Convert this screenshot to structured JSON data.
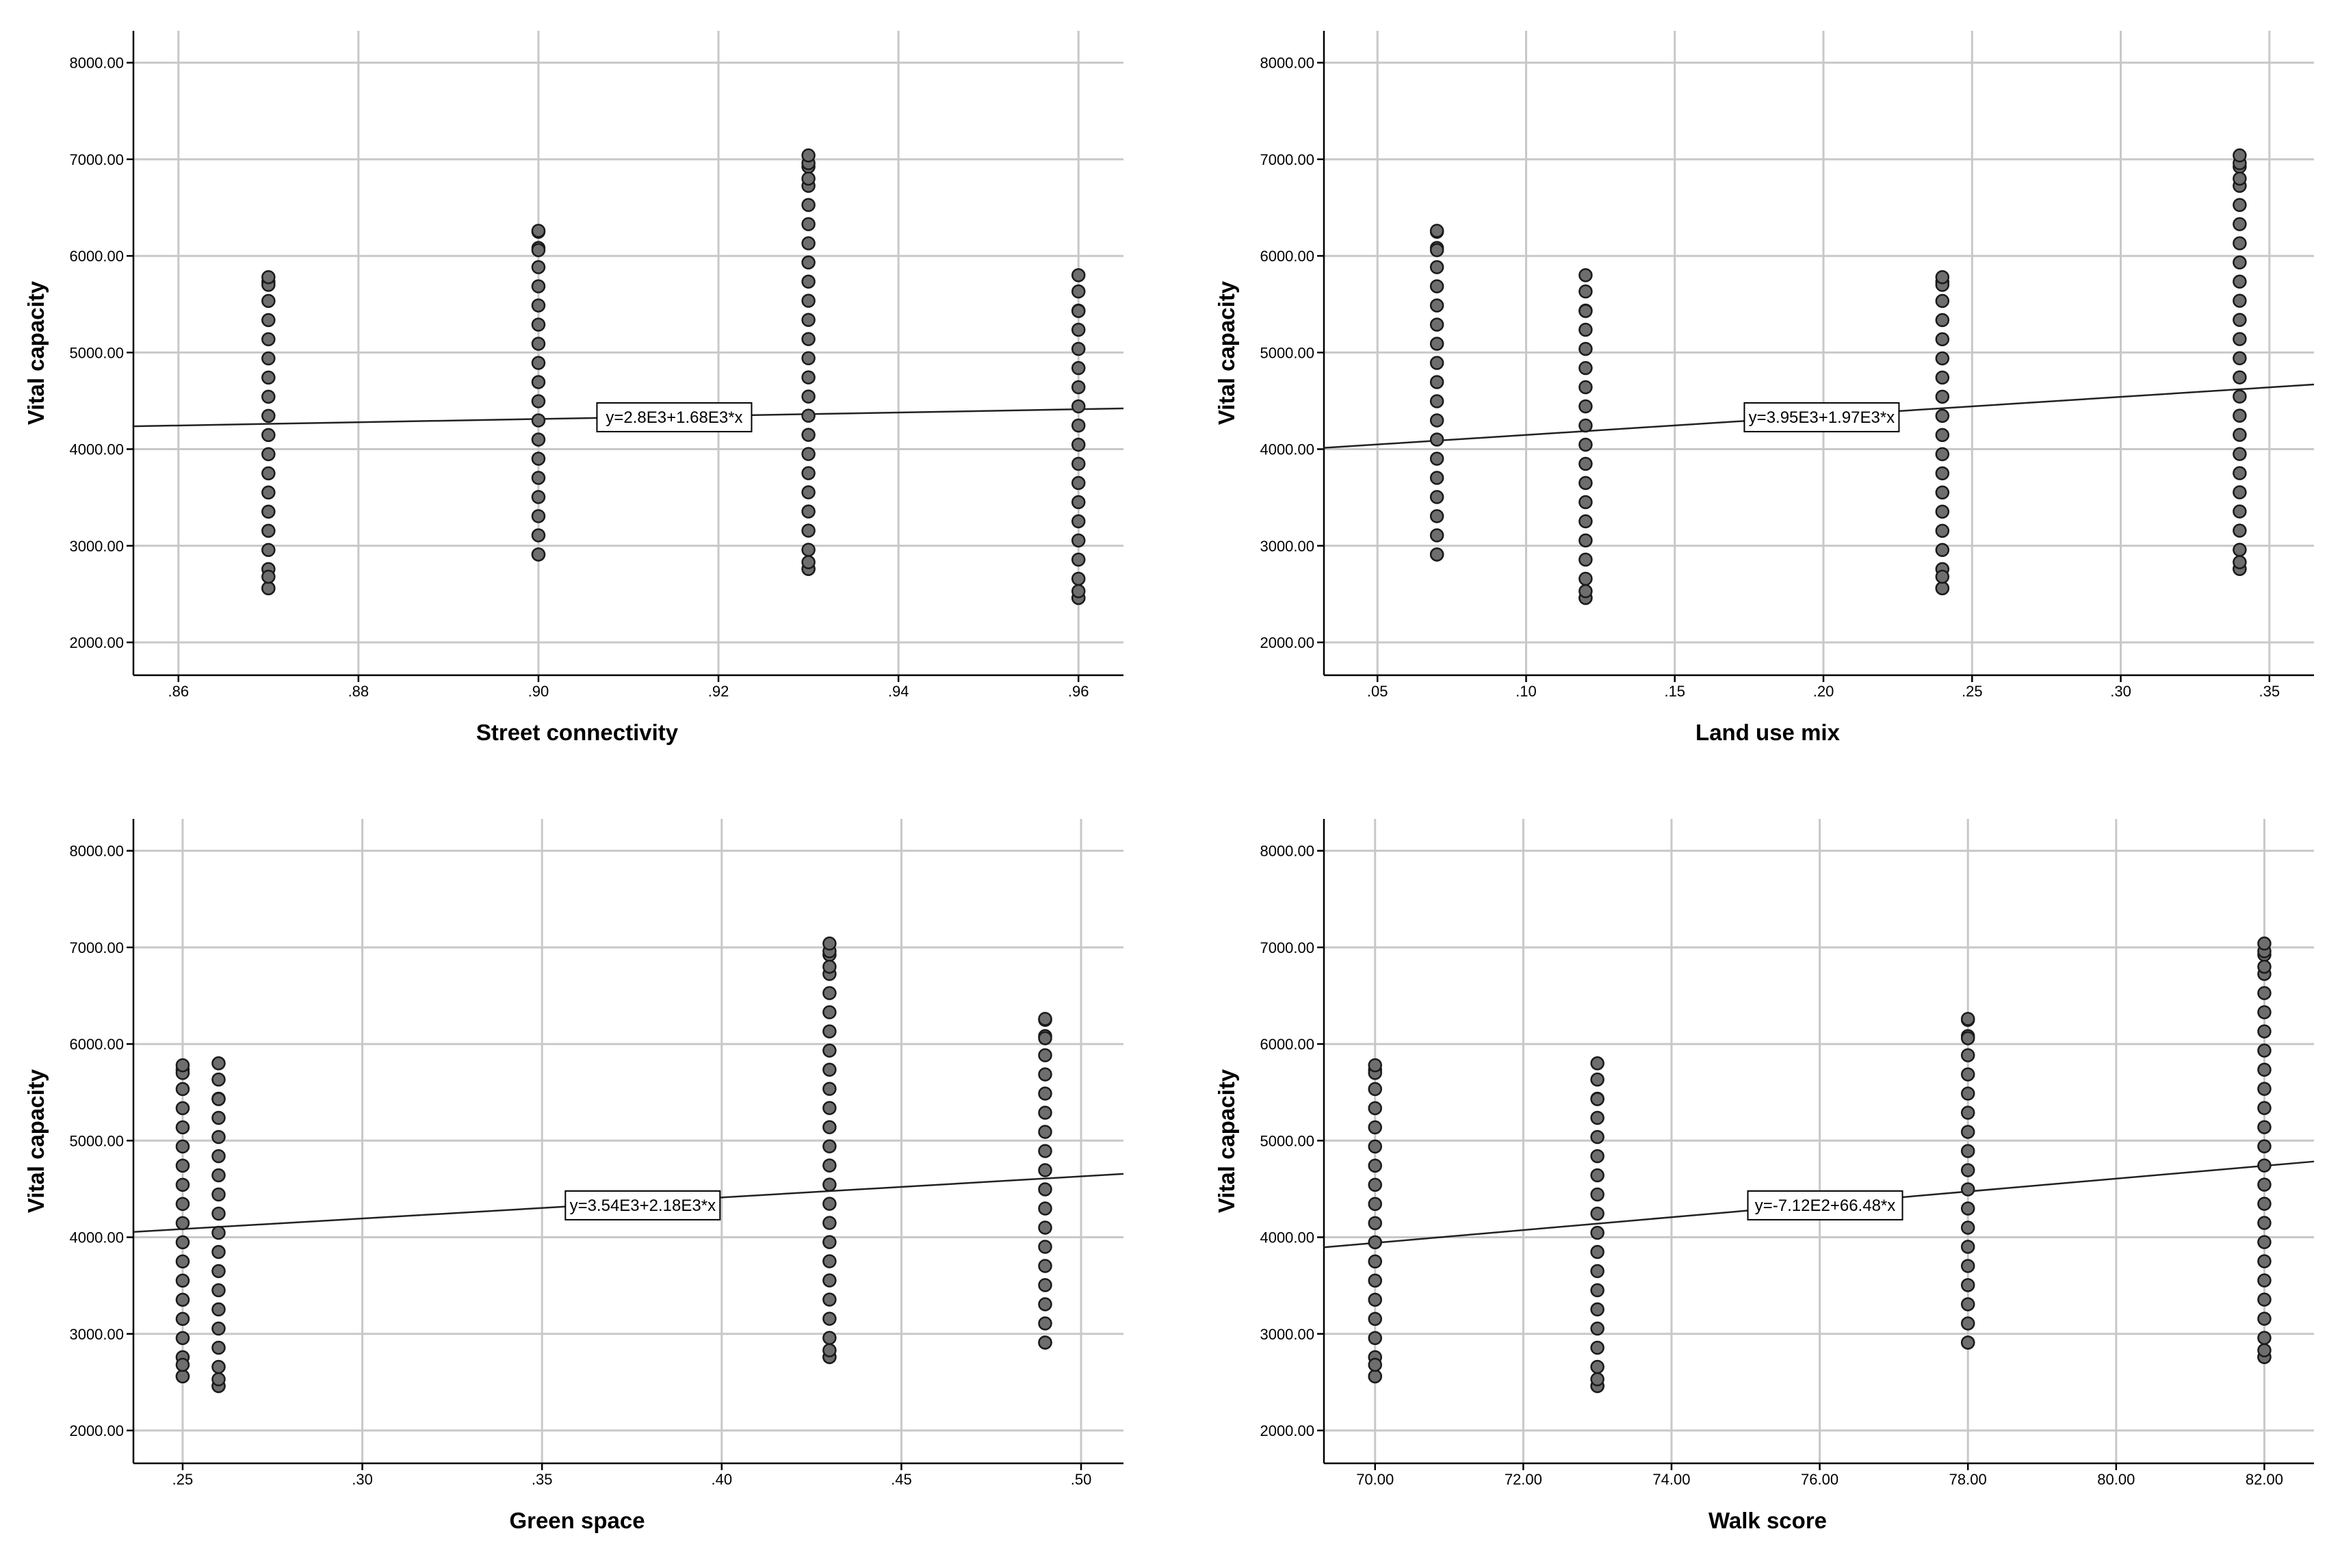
{
  "chart_data": [
    {
      "type": "scatter",
      "xlabel": "Street connectivity",
      "ylabel": "Vital capacity",
      "xlim": [
        0.855,
        0.965
      ],
      "ylim": [
        1660,
        8330
      ],
      "xticks": [
        ".86",
        ".88",
        ".90",
        ".92",
        ".94",
        ".96"
      ],
      "xtick_values": [
        0.86,
        0.88,
        0.9,
        0.92,
        0.94,
        0.96
      ],
      "yticks": [
        "2000.00",
        "3000.00",
        "4000.00",
        "5000.00",
        "6000.00",
        "7000.00",
        "8000.00"
      ],
      "ytick_values": [
        2000,
        3000,
        4000,
        5000,
        6000,
        7000,
        8000
      ],
      "grid": true,
      "fit": {
        "intercept": 2800,
        "slope": 1680,
        "label": "y=2.8E3+1.68E3*x",
        "label_x": 0.9065,
        "label_y": 4330
      },
      "groups": [
        {
          "x": 0.87,
          "y_min": 2560,
          "y_max": 5780,
          "extra": [
            2560,
            2680,
            5700,
            5780
          ]
        },
        {
          "x": 0.9,
          "y_min": 2910,
          "y_max": 6260,
          "extra": [
            2910,
            6060,
            6250,
            6260
          ]
        },
        {
          "x": 0.93,
          "y_min": 2760,
          "y_max": 7040,
          "extra": [
            2760,
            2830,
            6800,
            6960,
            7040
          ]
        },
        {
          "x": 0.96,
          "y_min": 2460,
          "y_max": 5800,
          "extra": [
            2460,
            2530,
            5430,
            5800
          ]
        }
      ]
    },
    {
      "type": "scatter",
      "xlabel": "Land use mix",
      "ylabel": "Vital capacity",
      "xlim": [
        0.032,
        0.365
      ],
      "ylim": [
        1660,
        8330
      ],
      "xticks": [
        ".05",
        ".10",
        ".15",
        ".20",
        ".25",
        ".30",
        ".35"
      ],
      "xtick_values": [
        0.05,
        0.1,
        0.15,
        0.2,
        0.25,
        0.3,
        0.35
      ],
      "yticks": [
        "2000.00",
        "3000.00",
        "4000.00",
        "5000.00",
        "6000.00",
        "7000.00",
        "8000.00"
      ],
      "ytick_values": [
        2000,
        3000,
        4000,
        5000,
        6000,
        7000,
        8000
      ],
      "grid": true,
      "fit": {
        "intercept": 3950,
        "slope": 1970,
        "label": "y=3.95E3+1.97E3*x",
        "label_x": 0.1734,
        "label_y": 4330
      },
      "groups": [
        {
          "x": 0.07,
          "y_min": 2910,
          "y_max": 6260,
          "extra": [
            2910,
            6060,
            6250,
            6260
          ]
        },
        {
          "x": 0.12,
          "y_min": 2460,
          "y_max": 5800,
          "extra": [
            2460,
            2530,
            5430,
            5800
          ]
        },
        {
          "x": 0.24,
          "y_min": 2560,
          "y_max": 5780,
          "extra": [
            2560,
            2680,
            5700,
            5780
          ]
        },
        {
          "x": 0.34,
          "y_min": 2760,
          "y_max": 7040,
          "extra": [
            2760,
            2830,
            6800,
            6960,
            7040
          ]
        }
      ]
    },
    {
      "type": "scatter",
      "xlabel": "Green space",
      "ylabel": "Vital capacity",
      "xlim": [
        0.2363,
        0.5118
      ],
      "ylim": [
        1660,
        8330
      ],
      "xticks": [
        ".25",
        ".30",
        ".35",
        ".40",
        ".45",
        ".50"
      ],
      "xtick_values": [
        0.25,
        0.3,
        0.35,
        0.4,
        0.45,
        0.5
      ],
      "yticks": [
        "2000.00",
        "3000.00",
        "4000.00",
        "5000.00",
        "6000.00",
        "7000.00",
        "8000.00"
      ],
      "ytick_values": [
        2000,
        3000,
        4000,
        5000,
        6000,
        7000,
        8000
      ],
      "grid": true,
      "fit": {
        "intercept": 3540,
        "slope": 2180,
        "label": "y=3.54E3+2.18E3*x",
        "label_x": 0.3565,
        "label_y": 4330
      },
      "groups": [
        {
          "x": 0.25,
          "y_min": 2560,
          "y_max": 5780,
          "extra": [
            2560,
            2680,
            5700,
            5780
          ]
        },
        {
          "x": 0.26,
          "y_min": 2460,
          "y_max": 5800,
          "extra": [
            2460,
            2530,
            5430,
            5800
          ]
        },
        {
          "x": 0.43,
          "y_min": 2760,
          "y_max": 7040,
          "extra": [
            2760,
            2830,
            6800,
            6960,
            7040
          ]
        },
        {
          "x": 0.49,
          "y_min": 2910,
          "y_max": 6260,
          "extra": [
            2910,
            6060,
            6250,
            6260
          ]
        }
      ]
    },
    {
      "type": "scatter",
      "xlabel": "Walk score",
      "ylabel": "Vital capacity",
      "xlim": [
        69.31,
        82.67
      ],
      "ylim": [
        1660,
        8330
      ],
      "xticks": [
        "70.00",
        "72.00",
        "74.00",
        "76.00",
        "78.00",
        "80.00",
        "82.00"
      ],
      "xtick_values": [
        70,
        72,
        74,
        76,
        78,
        80,
        82
      ],
      "yticks": [
        "2000.00",
        "3000.00",
        "4000.00",
        "5000.00",
        "6000.00",
        "7000.00",
        "8000.00"
      ],
      "ytick_values": [
        2000,
        3000,
        4000,
        5000,
        6000,
        7000,
        8000
      ],
      "grid": true,
      "fit": {
        "intercept": -712,
        "slope": 66.48,
        "label": "y=-7.12E2+66.48*x",
        "label_x": 75.03,
        "label_y": 4330
      },
      "groups": [
        {
          "x": 70,
          "y_min": 2560,
          "y_max": 5780,
          "extra": [
            2560,
            2680,
            5700,
            5780
          ]
        },
        {
          "x": 73,
          "y_min": 2460,
          "y_max": 5800,
          "extra": [
            2460,
            2530,
            5430,
            5800
          ]
        },
        {
          "x": 78,
          "y_min": 2910,
          "y_max": 6260,
          "extra": [
            2910,
            6060,
            6250,
            6260
          ]
        },
        {
          "x": 82,
          "y_min": 2760,
          "y_max": 7040,
          "extra": [
            2760,
            2830,
            6800,
            6960,
            7040
          ]
        }
      ]
    }
  ]
}
